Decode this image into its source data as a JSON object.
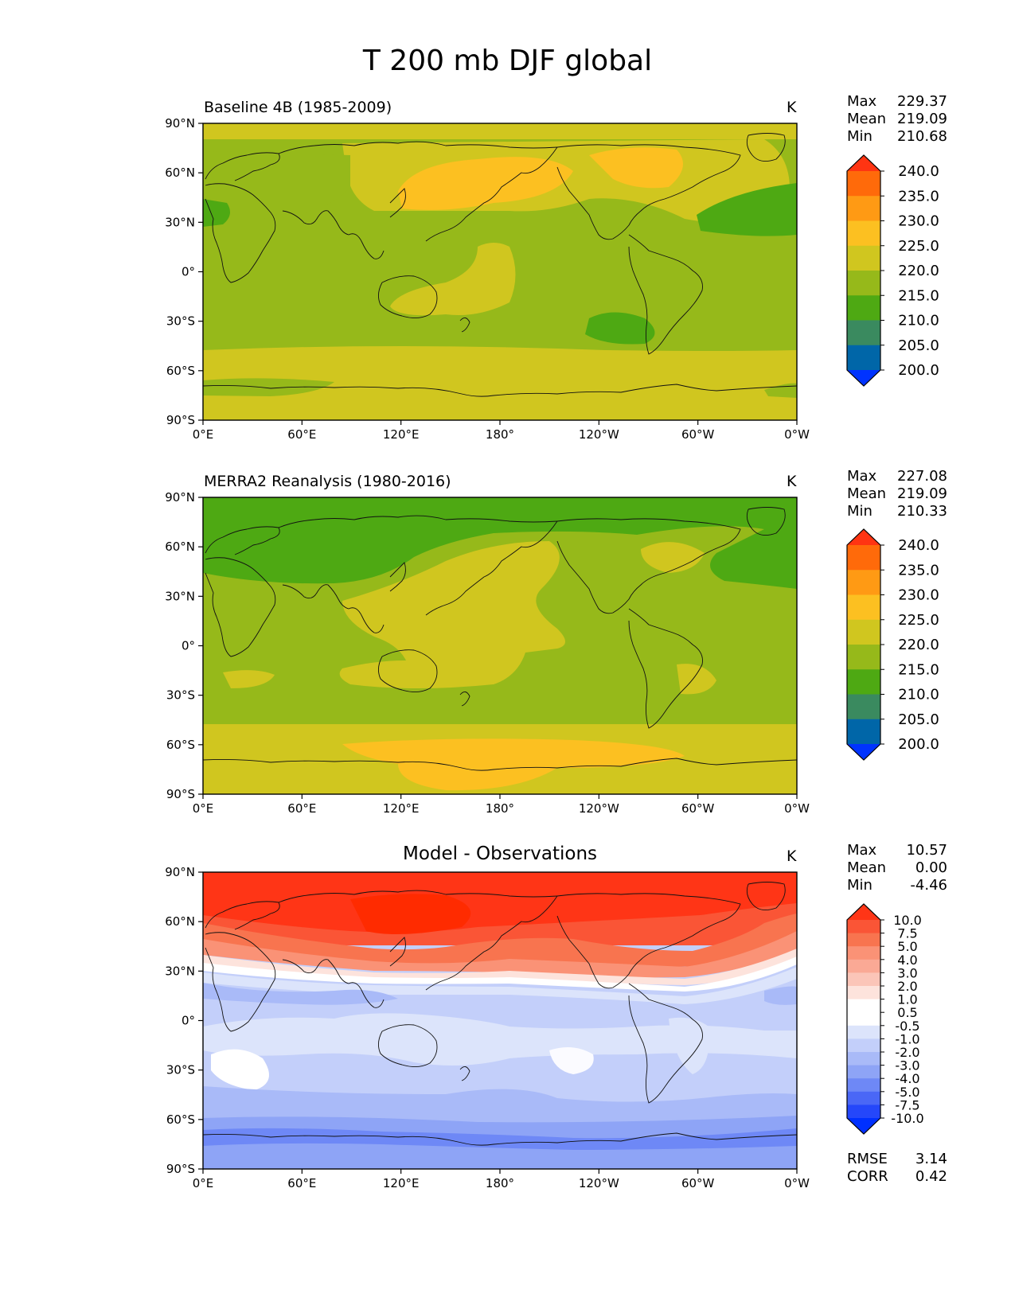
{
  "title": "T 200 mb DJF global",
  "units": "K",
  "lat_labels": [
    "90°N",
    "60°N",
    "30°N",
    "0°",
    "30°S",
    "60°S",
    "90°S"
  ],
  "lon_labels": [
    "0°E",
    "60°E",
    "120°E",
    "180°",
    "120°W",
    "60°W",
    "0°W"
  ],
  "stat_labels": {
    "max": "Max",
    "mean": "Mean",
    "min": "Min",
    "rmse": "RMSE",
    "corr": "CORR"
  },
  "panels": [
    {
      "subtitle": "Baseline 4B (1985-2009)",
      "center_title": "",
      "units": "K",
      "stats": {
        "max": "229.37",
        "mean": "219.09",
        "min": "210.68"
      }
    },
    {
      "subtitle": "MERRA2 Reanalysis (1980-2016)",
      "center_title": "",
      "units": "K",
      "stats": {
        "max": "227.08",
        "mean": "219.09",
        "min": "210.33"
      }
    },
    {
      "subtitle": "",
      "center_title": "Model - Observations",
      "units": "K",
      "stats": {
        "max": "10.57",
        "mean": "0.00",
        "min": "-4.46"
      },
      "rmse": "3.14",
      "corr": "0.42"
    }
  ],
  "colorbar_main": {
    "labels": [
      "240.0",
      "235.0",
      "230.0",
      "225.0",
      "220.0",
      "215.0",
      "210.0",
      "205.0",
      "200.0"
    ],
    "colors": [
      "#ff3412",
      "#ff6a0a",
      "#ff9a14",
      "#fcc021",
      "#d0c61f",
      "#96b91a",
      "#4ea913",
      "#3a8a5f",
      "#0066a8",
      "#0033ff"
    ]
  },
  "colorbar_diff": {
    "labels": [
      "10.0",
      "7.5",
      "5.0",
      "4.0",
      "3.0",
      "2.0",
      "1.0",
      "0.5",
      "-0.5",
      "-1.0",
      "-2.0",
      "-3.0",
      "-4.0",
      "-5.0",
      "-7.5",
      "-10.0"
    ],
    "colors": [
      "#ff3516",
      "#fa5536",
      "#f8744f",
      "#fa9276",
      "#faa995",
      "#fbc5b8",
      "#fde3dc",
      "#ffffff",
      "#ffffff",
      "#dce4fb",
      "#c3cffa",
      "#a9baf8",
      "#8ea4f6",
      "#6e88f6",
      "#4a67f6",
      "#2547fa",
      "#0030ff"
    ]
  },
  "map_colors": {
    "y240": "#ff3412",
    "y230": "#fcc021",
    "y225": "#d0c61f",
    "y220": "#96b91a",
    "y215": "#4ea913",
    "d10": "#ff3516",
    "d7": "#fa5536",
    "d5": "#f8744f",
    "d4": "#fa9276",
    "d1": "#fde3dc",
    "w": "#ffffff",
    "n1": "#dce4fb",
    "n2": "#c3cffa",
    "n3": "#a9baf8",
    "n4": "#8ea4f6",
    "n5": "#6e88f6"
  }
}
